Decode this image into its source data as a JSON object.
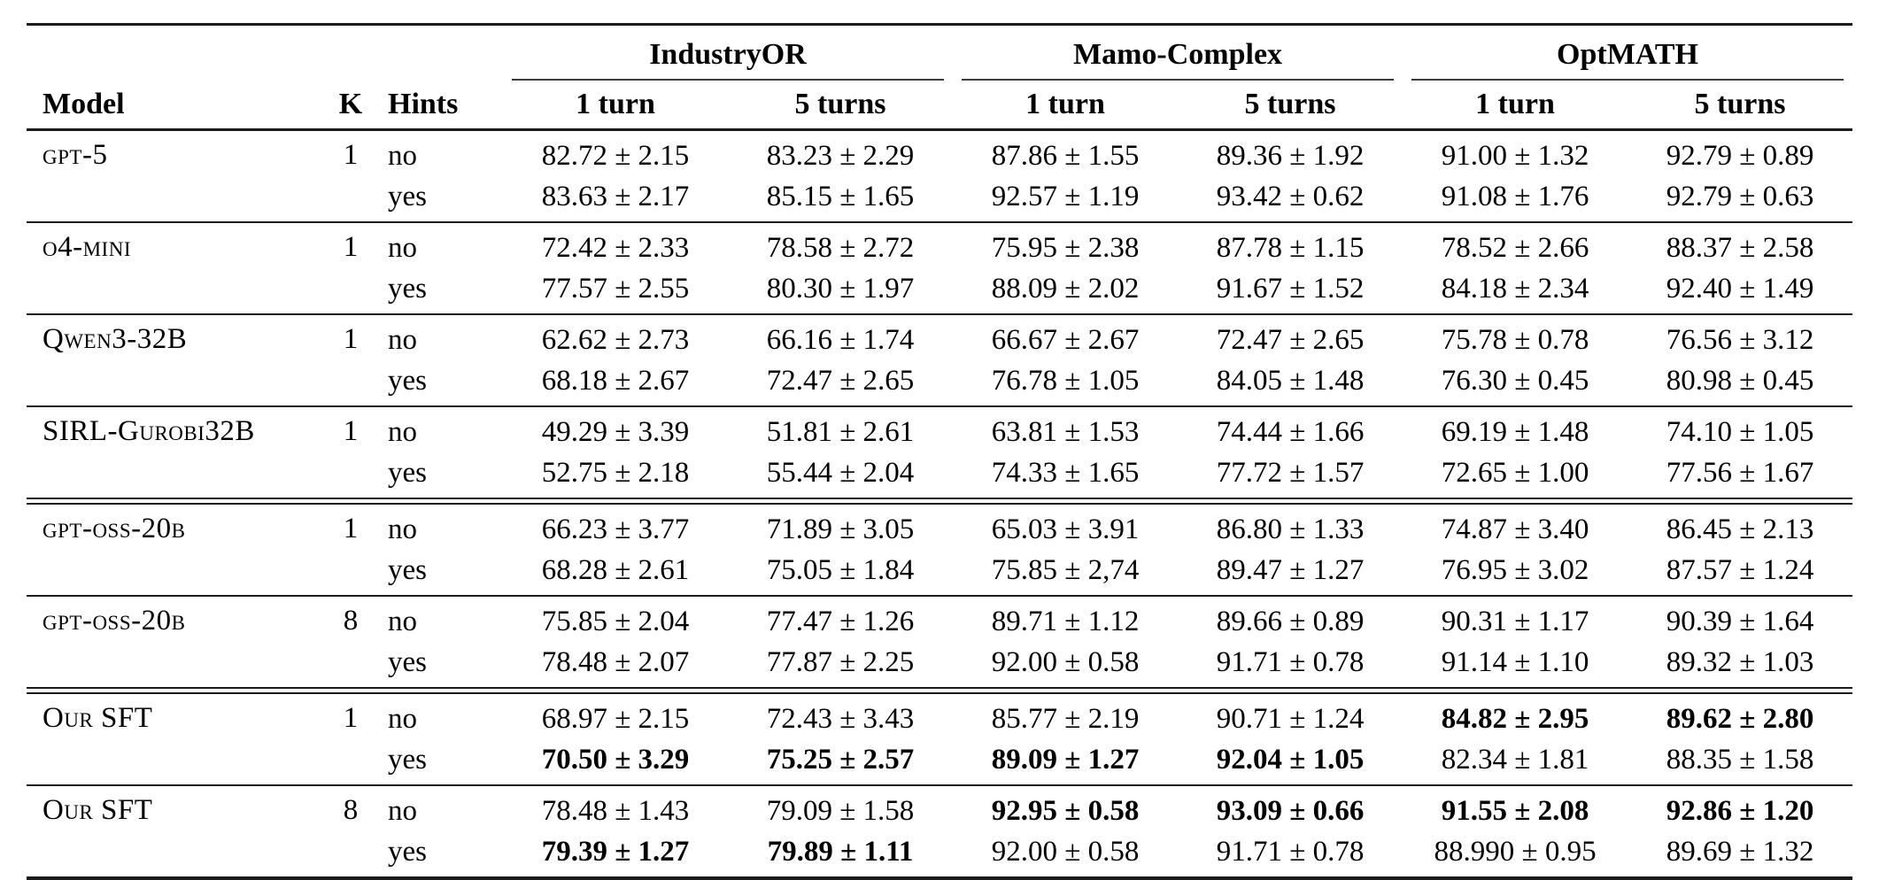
{
  "table": {
    "groups": [
      "IndustryOR",
      "Mamo-Complex",
      "OptMATH"
    ],
    "col_headers": {
      "model": "Model",
      "k": "K",
      "hints": "Hints",
      "turn1": "1 turn",
      "turn5": "5 turns"
    },
    "colors": {
      "text": "#000000",
      "rule": "#1a1a1a",
      "background": "#ffffff"
    },
    "rows": [
      {
        "model": "gpt-5",
        "k": "1",
        "rule_after": "single",
        "sub": [
          {
            "hints": "no",
            "cells": [
              {
                "v": "82.72 ± 2.15",
                "b": false
              },
              {
                "v": "83.23 ± 2.29",
                "b": false
              },
              {
                "v": "87.86 ± 1.55",
                "b": false
              },
              {
                "v": "89.36 ± 1.92",
                "b": false
              },
              {
                "v": "91.00 ± 1.32",
                "b": false
              },
              {
                "v": "92.79 ± 0.89",
                "b": false
              }
            ]
          },
          {
            "hints": "yes",
            "cells": [
              {
                "v": "83.63 ± 2.17",
                "b": false
              },
              {
                "v": "85.15 ± 1.65",
                "b": false
              },
              {
                "v": "92.57 ± 1.19",
                "b": false
              },
              {
                "v": "93.42 ± 0.62",
                "b": false
              },
              {
                "v": "91.08 ± 1.76",
                "b": false
              },
              {
                "v": "92.79 ± 0.63",
                "b": false
              }
            ]
          }
        ]
      },
      {
        "model": "o4-mini",
        "k": "1",
        "rule_after": "single",
        "sub": [
          {
            "hints": "no",
            "cells": [
              {
                "v": "72.42 ± 2.33",
                "b": false
              },
              {
                "v": "78.58 ± 2.72",
                "b": false
              },
              {
                "v": "75.95 ± 2.38",
                "b": false
              },
              {
                "v": "87.78 ± 1.15",
                "b": false
              },
              {
                "v": "78.52 ± 2.66",
                "b": false
              },
              {
                "v": "88.37 ± 2.58",
                "b": false
              }
            ]
          },
          {
            "hints": "yes",
            "cells": [
              {
                "v": "77.57 ± 2.55",
                "b": false
              },
              {
                "v": "80.30 ± 1.97",
                "b": false
              },
              {
                "v": "88.09 ± 2.02",
                "b": false
              },
              {
                "v": "91.67 ± 1.52",
                "b": false
              },
              {
                "v": "84.18 ± 2.34",
                "b": false
              },
              {
                "v": "92.40 ± 1.49",
                "b": false
              }
            ]
          }
        ]
      },
      {
        "model": "Qwen3-32B",
        "k": "1",
        "rule_after": "single",
        "sub": [
          {
            "hints": "no",
            "cells": [
              {
                "v": "62.62 ± 2.73",
                "b": false
              },
              {
                "v": "66.16 ± 1.74",
                "b": false
              },
              {
                "v": "66.67 ± 2.67",
                "b": false
              },
              {
                "v": "72.47 ± 2.65",
                "b": false
              },
              {
                "v": "75.78 ± 0.78",
                "b": false
              },
              {
                "v": "76.56 ± 3.12",
                "b": false
              }
            ]
          },
          {
            "hints": "yes",
            "cells": [
              {
                "v": "68.18 ± 2.67",
                "b": false
              },
              {
                "v": "72.47 ± 2.65",
                "b": false
              },
              {
                "v": "76.78 ± 1.05",
                "b": false
              },
              {
                "v": "84.05 ± 1.48",
                "b": false
              },
              {
                "v": "76.30 ± 0.45",
                "b": false
              },
              {
                "v": "80.98 ± 0.45",
                "b": false
              }
            ]
          }
        ]
      },
      {
        "model": "SIRL-Gurobi32B",
        "k": "1",
        "rule_after": "double",
        "sub": [
          {
            "hints": "no",
            "cells": [
              {
                "v": "49.29 ± 3.39",
                "b": false
              },
              {
                "v": "51.81 ± 2.61",
                "b": false
              },
              {
                "v": "63.81 ± 1.53",
                "b": false
              },
              {
                "v": "74.44 ± 1.66",
                "b": false
              },
              {
                "v": "69.19 ± 1.48",
                "b": false
              },
              {
                "v": "74.10 ± 1.05",
                "b": false
              }
            ]
          },
          {
            "hints": "yes",
            "cells": [
              {
                "v": "52.75 ± 2.18",
                "b": false
              },
              {
                "v": "55.44 ± 2.04",
                "b": false
              },
              {
                "v": "74.33 ± 1.65",
                "b": false
              },
              {
                "v": "77.72 ± 1.57",
                "b": false
              },
              {
                "v": "72.65 ± 1.00",
                "b": false
              },
              {
                "v": "77.56 ± 1.67",
                "b": false
              }
            ]
          }
        ]
      },
      {
        "model": "gpt-oss-20b",
        "k": "1",
        "rule_after": "single",
        "sub": [
          {
            "hints": "no",
            "cells": [
              {
                "v": "66.23 ± 3.77",
                "b": false
              },
              {
                "v": "71.89 ± 3.05",
                "b": false
              },
              {
                "v": "65.03 ± 3.91",
                "b": false
              },
              {
                "v": "86.80 ± 1.33",
                "b": false
              },
              {
                "v": "74.87 ± 3.40",
                "b": false
              },
              {
                "v": "86.45 ± 2.13",
                "b": false
              }
            ]
          },
          {
            "hints": "yes",
            "cells": [
              {
                "v": "68.28 ± 2.61",
                "b": false
              },
              {
                "v": "75.05 ± 1.84",
                "b": false
              },
              {
                "v": "75.85 ± 2,74",
                "b": false
              },
              {
                "v": "89.47 ± 1.27",
                "b": false
              },
              {
                "v": "76.95 ± 3.02",
                "b": false
              },
              {
                "v": "87.57 ± 1.24",
                "b": false
              }
            ]
          }
        ]
      },
      {
        "model": "gpt-oss-20b",
        "k": "8",
        "rule_after": "double",
        "sub": [
          {
            "hints": "no",
            "cells": [
              {
                "v": "75.85 ± 2.04",
                "b": false
              },
              {
                "v": "77.47 ± 1.26",
                "b": false
              },
              {
                "v": "89.71 ± 1.12",
                "b": false
              },
              {
                "v": "89.66 ± 0.89",
                "b": false
              },
              {
                "v": "90.31 ± 1.17",
                "b": false
              },
              {
                "v": "90.39 ± 1.64",
                "b": false
              }
            ]
          },
          {
            "hints": "yes",
            "cells": [
              {
                "v": "78.48 ± 2.07",
                "b": false
              },
              {
                "v": "77.87 ± 2.25",
                "b": false
              },
              {
                "v": "92.00 ± 0.58",
                "b": false
              },
              {
                "v": "91.71 ± 0.78",
                "b": false
              },
              {
                "v": "91.14 ± 1.10",
                "b": false
              },
              {
                "v": "89.32 ± 1.03",
                "b": false
              }
            ]
          }
        ]
      },
      {
        "model": "Our SFT",
        "k": "1",
        "rule_after": "single",
        "sub": [
          {
            "hints": "no",
            "cells": [
              {
                "v": "68.97 ± 2.15",
                "b": false
              },
              {
                "v": "72.43 ± 3.43",
                "b": false
              },
              {
                "v": "85.77 ± 2.19",
                "b": false
              },
              {
                "v": "90.71 ± 1.24",
                "b": false
              },
              {
                "v": "84.82 ± 2.95",
                "b": true
              },
              {
                "v": "89.62 ± 2.80",
                "b": true
              }
            ]
          },
          {
            "hints": "yes",
            "cells": [
              {
                "v": "70.50 ± 3.29",
                "b": true
              },
              {
                "v": "75.25 ± 2.57",
                "b": true
              },
              {
                "v": "89.09 ± 1.27",
                "b": true
              },
              {
                "v": "92.04 ± 1.05",
                "b": true
              },
              {
                "v": "82.34 ± 1.81",
                "b": false
              },
              {
                "v": "88.35 ± 1.58",
                "b": false
              }
            ]
          }
        ]
      },
      {
        "model": "Our SFT",
        "k": "8",
        "rule_after": "none",
        "sub": [
          {
            "hints": "no",
            "cells": [
              {
                "v": "78.48 ± 1.43",
                "b": false
              },
              {
                "v": "79.09 ± 1.58",
                "b": false
              },
              {
                "v": "92.95 ± 0.58",
                "b": true
              },
              {
                "v": "93.09 ± 0.66",
                "b": true
              },
              {
                "v": "91.55 ± 2.08",
                "b": true
              },
              {
                "v": "92.86 ± 1.20",
                "b": true
              }
            ]
          },
          {
            "hints": "yes",
            "cells": [
              {
                "v": "79.39 ± 1.27",
                "b": true
              },
              {
                "v": "79.89 ± 1.11",
                "b": true
              },
              {
                "v": "92.00 ± 0.58",
                "b": false
              },
              {
                "v": "91.71 ± 0.78",
                "b": false
              },
              {
                "v": "88.990 ± 0.95",
                "b": false
              },
              {
                "v": "89.69 ± 1.32",
                "b": false
              }
            ]
          }
        ]
      }
    ]
  }
}
